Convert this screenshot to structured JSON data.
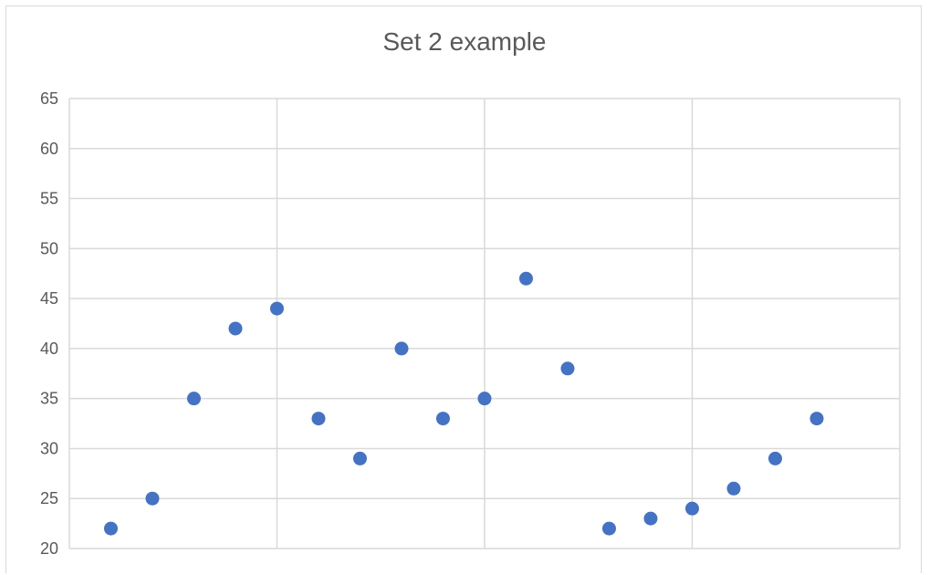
{
  "chart_data": {
    "type": "scatter",
    "title": "Set 2 example",
    "xlabel": "",
    "ylabel": "",
    "x": [
      1,
      2,
      3,
      4,
      5,
      6,
      7,
      8,
      9,
      10,
      11,
      12,
      13,
      14,
      15,
      16,
      17,
      18
    ],
    "y": [
      22,
      25,
      35,
      42,
      44,
      33,
      29,
      40,
      33,
      35,
      47,
      38,
      22,
      23,
      24,
      26,
      29,
      33
    ],
    "xlim": [
      0,
      20
    ],
    "ylim": [
      20,
      65
    ],
    "yticks": [
      "20",
      "25",
      "30",
      "35",
      "40",
      "45",
      "50",
      "55",
      "60",
      "65"
    ],
    "grid": true,
    "legend": "none",
    "colors": {
      "marker": "#4472c4",
      "grid": "#d9d9d9",
      "text": "#595959"
    }
  }
}
